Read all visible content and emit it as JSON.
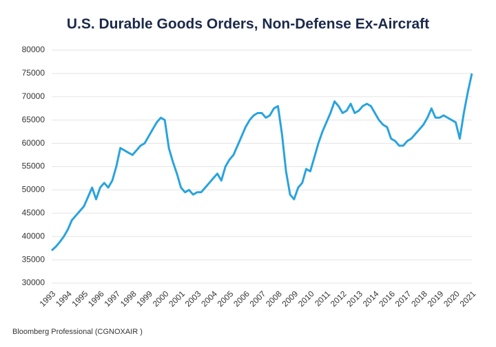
{
  "chart_data": {
    "type": "line",
    "title": "U.S. Durable Goods Orders, Non-Defense Ex-Aircraft",
    "source": "Bloomberg Professional (CGNOXAIR )",
    "categories": [
      "1993",
      null,
      null,
      null,
      "1994",
      null,
      null,
      null,
      "1995",
      null,
      null,
      null,
      "1996",
      null,
      null,
      null,
      "1997",
      null,
      null,
      null,
      "1998",
      null,
      null,
      null,
      "1999",
      null,
      null,
      null,
      "2000",
      null,
      null,
      null,
      "2001",
      null,
      null,
      null,
      "2003",
      null,
      null,
      null,
      "2004",
      null,
      null,
      null,
      "2005",
      null,
      null,
      null,
      "2006",
      null,
      null,
      null,
      "2007",
      null,
      null,
      null,
      "2008",
      null,
      null,
      null,
      "2009",
      null,
      null,
      null,
      "2010",
      null,
      null,
      null,
      "2011",
      null,
      null,
      null,
      "2012",
      null,
      null,
      null,
      "2013",
      null,
      null,
      null,
      "2014",
      null,
      null,
      null,
      "2016",
      null,
      null,
      null,
      "2017",
      null,
      null,
      null,
      "2018",
      null,
      null,
      null,
      "2019",
      null,
      null,
      null,
      "2020",
      null,
      null,
      null,
      "2021"
    ],
    "values": [
      37000,
      37800,
      38800,
      40000,
      41500,
      43500,
      44500,
      45500,
      46500,
      48500,
      50500,
      48000,
      50500,
      51500,
      50500,
      52000,
      55000,
      59000,
      58500,
      58000,
      57500,
      58500,
      59500,
      60000,
      61500,
      63000,
      64500,
      65500,
      65000,
      59000,
      56000,
      53500,
      50500,
      49500,
      50000,
      49000,
      49500,
      49500,
      50500,
      51500,
      52500,
      53500,
      52000,
      55000,
      56500,
      57500,
      59500,
      61500,
      63500,
      65000,
      66000,
      66500,
      66500,
      65500,
      66000,
      67500,
      68000,
      62000,
      54000,
      49000,
      48000,
      50500,
      51500,
      54500,
      54000,
      57000,
      60000,
      62500,
      64500,
      66500,
      69000,
      68000,
      66500,
      67000,
      68500,
      66500,
      67000,
      68000,
      68500,
      68000,
      66500,
      65000,
      64000,
      63500,
      61000,
      60500,
      59500,
      59500,
      60500,
      61000,
      62000,
      63000,
      64000,
      65500,
      67500,
      65500,
      65500,
      66000,
      65500,
      65000,
      64500,
      61000,
      66500,
      71000,
      75000
    ],
    "color": "#29a3dd",
    "ylim": [
      30000,
      80000
    ],
    "yticks": [
      30000,
      35000,
      40000,
      45000,
      50000,
      55000,
      60000,
      65000,
      70000,
      75000,
      80000
    ],
    "grid": true
  }
}
